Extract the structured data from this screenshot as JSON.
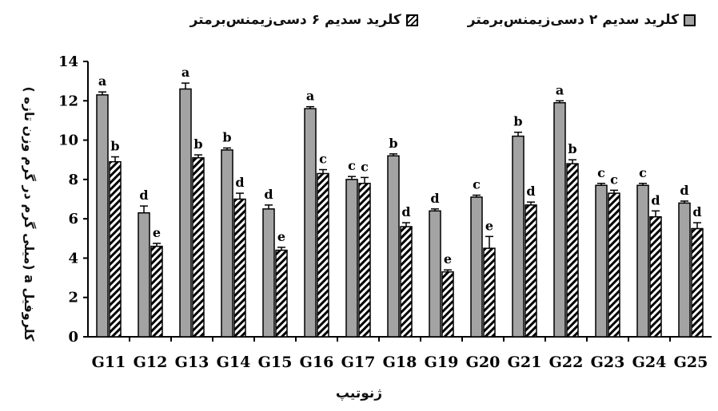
{
  "chart_data": {
    "type": "bar",
    "categories": [
      "G11",
      "G12",
      "G13",
      "G14",
      "G15",
      "G16",
      "G17",
      "G18",
      "G19",
      "G20",
      "G21",
      "G22",
      "G23",
      "G24",
      "G25"
    ],
    "series": [
      {
        "name": "کلرید سدیم ۲ دسی‌زیمنس‌برمتر",
        "color": "#a3a3a3",
        "pattern": "solid-gray",
        "values": [
          12.3,
          6.3,
          12.6,
          9.5,
          6.5,
          11.6,
          8.0,
          9.2,
          6.4,
          7.1,
          10.2,
          11.9,
          7.7,
          7.7,
          6.8
        ],
        "error": [
          0.15,
          0.35,
          0.3,
          0.1,
          0.2,
          0.1,
          0.15,
          0.1,
          0.1,
          0.1,
          0.2,
          0.1,
          0.1,
          0.1,
          0.1
        ],
        "letters": [
          "a",
          "d",
          "a",
          "b",
          "d",
          "a",
          "c",
          "b",
          "d",
          "c",
          "b",
          "a",
          "c",
          "c",
          "d"
        ]
      },
      {
        "name": "کلرید سدیم ۶ دسی‌زیمنس‌برمتر",
        "color": "#000000",
        "pattern": "hatched",
        "values": [
          8.9,
          4.6,
          9.1,
          7.0,
          4.4,
          8.3,
          7.8,
          5.6,
          3.3,
          4.5,
          6.7,
          8.8,
          7.3,
          6.1,
          5.5
        ],
        "error": [
          0.25,
          0.15,
          0.15,
          0.3,
          0.15,
          0.2,
          0.3,
          0.2,
          0.1,
          0.6,
          0.15,
          0.2,
          0.15,
          0.3,
          0.3
        ],
        "letters": [
          "b",
          "e",
          "b",
          "d",
          "e",
          "c",
          "c",
          "d",
          "e",
          "e",
          "d",
          "b",
          "c",
          "d",
          "d"
        ]
      }
    ],
    "xlabel": "ژنوتیپ",
    "ylabel": "کلروفیل a (میلی گرم در گرم وزن تازه )",
    "ylim": [
      0,
      14
    ],
    "yticks": [
      0,
      2,
      4,
      6,
      8,
      10,
      12,
      14
    ],
    "grid": false,
    "legend_position": "top"
  }
}
